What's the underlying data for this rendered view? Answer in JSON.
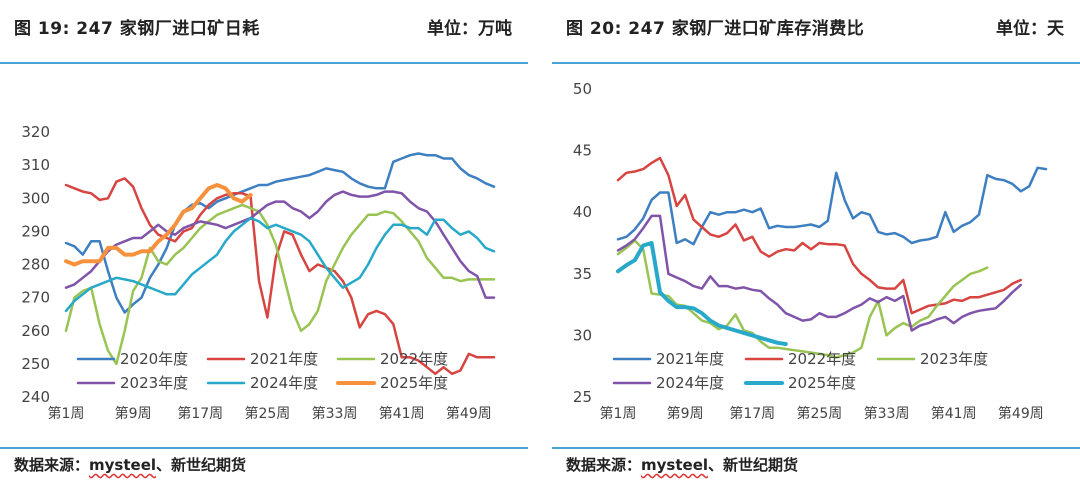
{
  "panels": [
    {
      "title": "图 19:   247 家钢厂进口矿日耗",
      "unit": "单位：万吨",
      "source_prefix": "数据来源：",
      "source_brand": "mysteel",
      "source_suffix": "、新世纪期货"
    },
    {
      "title": "图 20:   247 家钢厂进口矿库存消费比",
      "unit": "单位：天",
      "source_prefix": "数据来源：",
      "source_brand": "mysteel",
      "source_suffix": "、新世纪期货"
    }
  ],
  "chart_data": [
    {
      "type": "line",
      "ylim": [
        240,
        320
      ],
      "yticks": [
        240,
        250,
        260,
        270,
        280,
        290,
        300,
        310,
        320
      ],
      "xlim": [
        1,
        52
      ],
      "xticks": [
        1,
        9,
        17,
        25,
        33,
        41,
        49
      ],
      "xtick_labels": [
        "第1周",
        "第9周",
        "第17周",
        "第25周",
        "第33周",
        "第41周",
        "第49周"
      ],
      "legend_position": "bottom",
      "series": [
        {
          "name": "2020年度",
          "color": "#3d7fc1",
          "width": 2.5,
          "values": [
            286.5,
            285.5,
            283,
            287,
            287,
            278,
            270,
            265.5,
            268,
            270,
            276,
            280,
            285,
            292,
            296,
            298,
            298.5,
            297,
            299,
            300,
            301,
            302,
            303,
            304,
            304,
            305,
            305.5,
            306,
            306.5,
            307,
            308,
            309,
            308.5,
            308,
            306,
            304.5,
            303.5,
            303,
            303,
            311,
            312,
            313,
            313.5,
            313,
            313,
            312,
            312,
            309,
            307,
            306,
            304.5,
            303.5
          ]
        },
        {
          "name": "2021年度",
          "color": "#d64541",
          "width": 2.5,
          "values": [
            304,
            303,
            302,
            301.5,
            299.5,
            300,
            305,
            306,
            303.5,
            297,
            292,
            289,
            288,
            287,
            290,
            291,
            295,
            298,
            300,
            301,
            301.5,
            301.5,
            300.5,
            275,
            264,
            282,
            290,
            289,
            283,
            278,
            280,
            279,
            278,
            275,
            270,
            261,
            265,
            266,
            265,
            262,
            252,
            252,
            251,
            249,
            247,
            249,
            247,
            248,
            253,
            252,
            252,
            252
          ]
        },
        {
          "name": "2022年度",
          "color": "#99c454",
          "width": 2.5,
          "values": [
            260,
            270,
            272,
            273,
            262,
            254,
            250,
            260,
            272,
            276,
            285,
            281,
            280,
            283,
            285,
            288,
            291,
            293,
            295,
            296,
            297,
            298,
            297,
            296,
            292,
            286,
            276,
            266,
            260,
            262,
            266,
            275,
            280,
            285,
            289,
            292,
            295,
            295,
            296,
            295.5,
            293,
            290,
            287,
            282,
            279,
            276,
            276,
            275,
            275.5,
            275.5,
            275.5,
            275.5
          ]
        },
        {
          "name": "2023年度",
          "color": "#8054a8",
          "width": 2.5,
          "values": [
            273,
            274,
            276,
            278,
            281,
            284,
            286,
            287,
            288,
            288,
            290,
            292,
            290,
            289,
            291,
            292,
            293,
            292.5,
            292,
            291,
            292,
            293,
            294,
            296,
            298,
            299,
            299,
            297,
            296,
            294,
            296,
            299,
            301,
            302,
            301,
            300.5,
            300.5,
            301,
            302,
            302,
            301.5,
            299,
            297,
            296,
            293,
            289,
            285,
            281,
            278,
            276.5,
            270,
            270
          ]
        },
        {
          "name": "2024年度",
          "color": "#28a9c9",
          "width": 2.5,
          "values": [
            266,
            269,
            271,
            273,
            274,
            275,
            276,
            275.5,
            275,
            274,
            273,
            272,
            271,
            271,
            274,
            277,
            279,
            281,
            283,
            287,
            290,
            292,
            294,
            293,
            291,
            292,
            291,
            290,
            289,
            287,
            283,
            279,
            276,
            273,
            274.5,
            276,
            280,
            285,
            289,
            292,
            292,
            291,
            291,
            289,
            293.5,
            293.5,
            291,
            289,
            290,
            288,
            285,
            284
          ]
        },
        {
          "name": "2025年度",
          "color": "#f7913d",
          "width": 4,
          "values": [
            281,
            280,
            281,
            281,
            281,
            285,
            285,
            283,
            283,
            284,
            284,
            287,
            289,
            292,
            296,
            297,
            300,
            303,
            304,
            303,
            300,
            299,
            301
          ]
        }
      ]
    },
    {
      "type": "line",
      "ylim": [
        25,
        50
      ],
      "yticks": [
        25,
        30,
        35,
        40,
        45,
        50
      ],
      "xlim": [
        1,
        52
      ],
      "xticks": [
        1,
        9,
        17,
        25,
        33,
        41,
        49
      ],
      "xtick_labels": [
        "第1周",
        "第9周",
        "第17周",
        "第25周",
        "第33周",
        "第41周",
        "第49周"
      ],
      "legend_position": "bottom",
      "series": [
        {
          "name": "2021年度",
          "color": "#3d7fc1",
          "width": 2.5,
          "values": [
            37.8,
            38.0,
            38.6,
            39.5,
            41.0,
            41.6,
            41.6,
            37.5,
            37.8,
            37.4,
            38.8,
            40.0,
            39.8,
            40.0,
            40.0,
            40.2,
            40.0,
            40.3,
            38.7,
            38.9,
            38.8,
            38.8,
            38.9,
            39.0,
            38.8,
            39.3,
            43.2,
            41.0,
            39.5,
            40.0,
            39.8,
            38.4,
            38.2,
            38.3,
            38.0,
            37.5,
            37.7,
            37.8,
            38.0,
            40.0,
            38.4,
            38.9,
            39.2,
            39.8,
            43.0,
            42.7,
            42.6,
            42.3,
            41.7,
            42.1,
            43.6,
            43.5
          ]
        },
        {
          "name": "2022年度",
          "color": "#d64541",
          "width": 2.5,
          "values": [
            42.6,
            43.2,
            43.3,
            43.5,
            44.0,
            44.4,
            43.0,
            40.5,
            41.4,
            39.4,
            38.8,
            38.2,
            38.0,
            38.3,
            39.0,
            37.7,
            38.0,
            36.8,
            36.4,
            36.8,
            37.0,
            36.9,
            37.5,
            37.0,
            37.5,
            37.4,
            37.4,
            37.3,
            35.8,
            35.0,
            34.5,
            33.9,
            33.8,
            33.8,
            34.5,
            31.8,
            32.1,
            32.4,
            32.5,
            32.6,
            32.9,
            32.8,
            33.1,
            33.1,
            33.3,
            33.5,
            33.7,
            34.2,
            34.5
          ]
        },
        {
          "name": "2023年度",
          "color": "#99c454",
          "width": 2.5,
          "values": [
            36.6,
            37.1,
            37.7,
            37.0,
            33.4,
            33.3,
            33.2,
            32.5,
            32.4,
            31.8,
            31.2,
            31.0,
            30.5,
            30.8,
            31.7,
            30.4,
            30.2,
            29.5,
            29.0,
            29.0,
            28.9,
            28.8,
            28.7,
            28.6,
            28.5,
            28.4,
            28.2,
            28.4,
            28.6,
            29.0,
            31.5,
            32.8,
            30.0,
            30.6,
            31.0,
            30.7,
            31.2,
            31.5,
            32.4,
            33.2,
            34.0,
            34.5,
            35.0,
            35.2,
            35.5
          ]
        },
        {
          "name": "2024年度",
          "color": "#8054a8",
          "width": 2.5,
          "values": [
            36.9,
            37.3,
            37.8,
            38.7,
            39.7,
            39.7,
            35.0,
            34.7,
            34.4,
            34.0,
            33.8,
            34.8,
            34.0,
            34.0,
            33.8,
            33.9,
            33.7,
            33.6,
            33.0,
            32.5,
            31.8,
            31.5,
            31.2,
            31.3,
            31.8,
            31.5,
            31.5,
            31.8,
            32.2,
            32.5,
            33.0,
            32.7,
            33.1,
            32.8,
            33.2,
            30.4,
            30.8,
            31.0,
            31.3,
            31.5,
            31.0,
            31.5,
            31.8,
            32.0,
            32.1,
            32.2,
            32.8,
            33.5,
            34.1
          ]
        },
        {
          "name": "2025年度",
          "color": "#28a9c9",
          "width": 4,
          "values": [
            35.2,
            35.7,
            36.1,
            37.3,
            37.5,
            33.5,
            32.8,
            32.3,
            32.3,
            32.2,
            31.8,
            31.2,
            30.8,
            30.6,
            30.4,
            30.2,
            30.0,
            29.8,
            29.6,
            29.4,
            29.3
          ]
        }
      ]
    }
  ]
}
